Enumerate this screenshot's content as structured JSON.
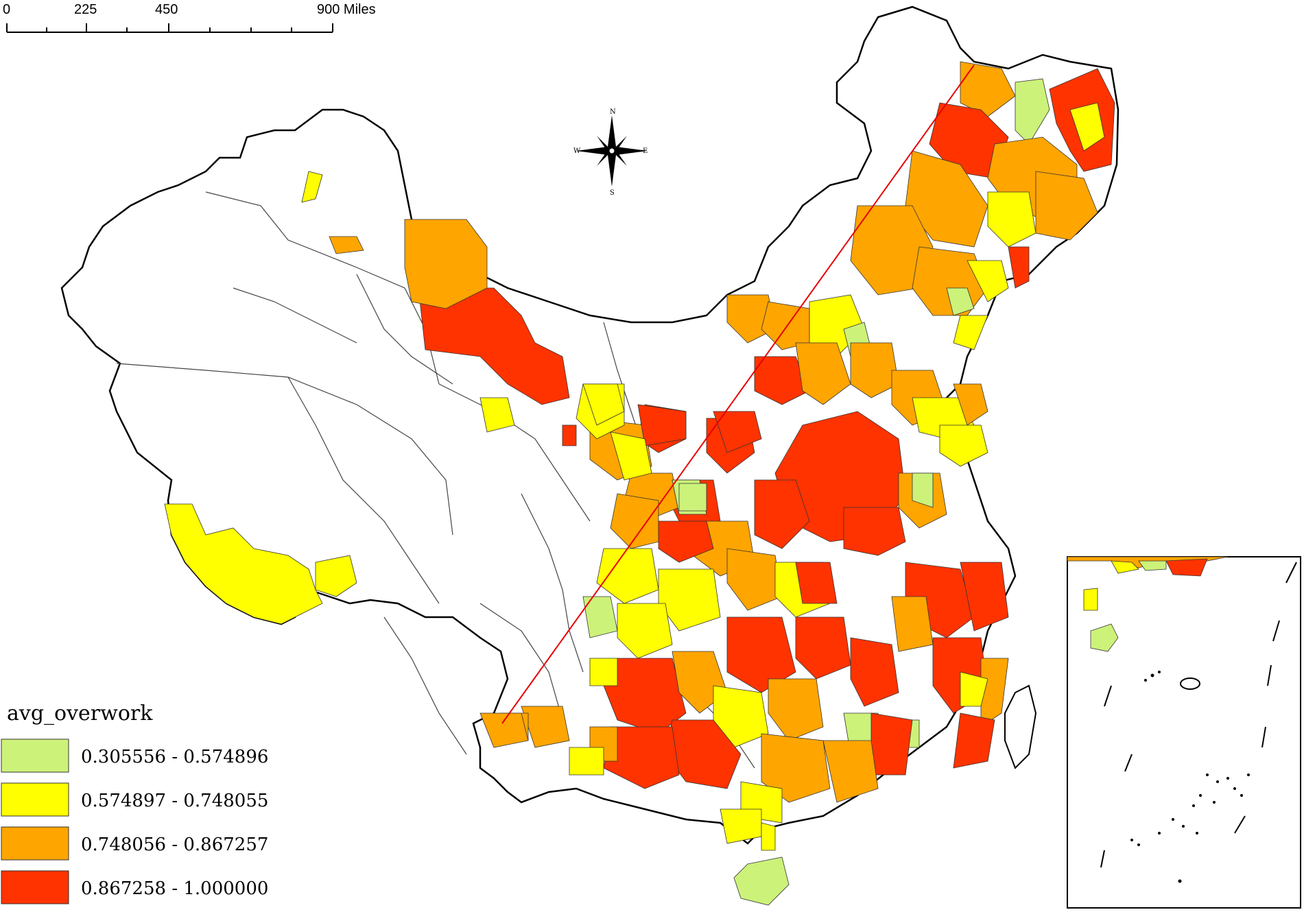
{
  "scale_bar": {
    "ticks": [
      "0",
      "225",
      "450",
      "900 Miles"
    ]
  },
  "legend": {
    "title": "avg_overwork",
    "classes": [
      {
        "label": "0.305556 - 0.574896",
        "color": "#ccf27a"
      },
      {
        "label": "0.574897 - 0.748055",
        "color": "#ffff00"
      },
      {
        "label": "0.748056 - 0.867257",
        "color": "#ffa500"
      },
      {
        "label": "0.867258 - 1.000000",
        "color": "#ff3300"
      }
    ]
  },
  "compass": {
    "n": "N",
    "s": "S",
    "e": "E",
    "w": "W"
  },
  "colors": {
    "line": "#e60000",
    "border": "#000000",
    "nodata": "#ffffff"
  }
}
